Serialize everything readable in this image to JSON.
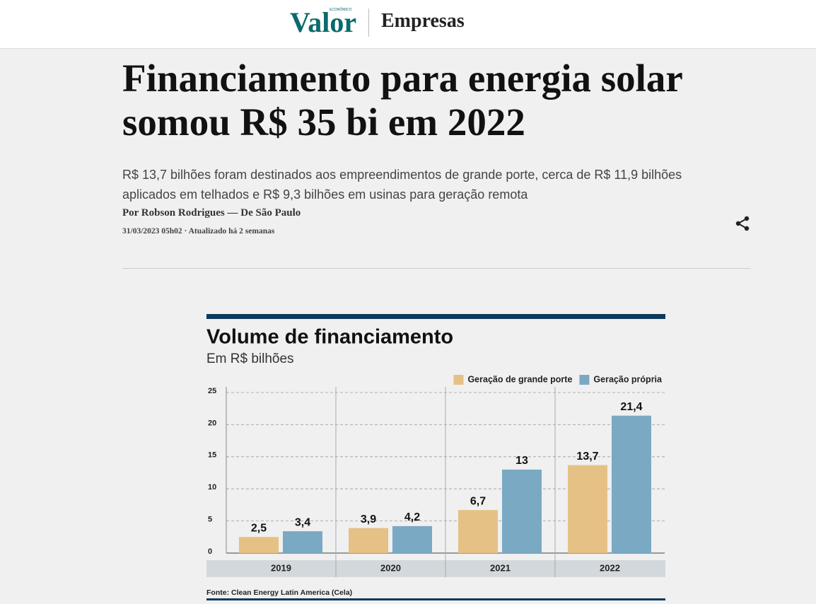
{
  "header": {
    "logo": "Valor",
    "logo_small": "ECONÔMICO",
    "section": "Empresas"
  },
  "article": {
    "title": "Financiamento para energia solar somou R$ 35 bi em 2022",
    "subtitle": "R$ 13,7 bilhões foram destinados aos empreendimentos de grande porte, cerca de R$ 11,9 bilhões aplicados em telhados e R$ 9,3 bilhões em usinas para geração remota",
    "byline": "Por Robson Rodrigues — De São Paulo",
    "date": "31/03/2023 05h02 · Atualizado há 2 semanas"
  },
  "chart_data": {
    "type": "bar",
    "title": "Volume de financiamento",
    "subtitle": "Em R$ bilhões",
    "categories": [
      "2019",
      "2020",
      "2021",
      "2022"
    ],
    "series": [
      {
        "name": "Geração de grande porte",
        "color": "#e5c185",
        "values": [
          2.5,
          3.9,
          6.7,
          13.7
        ],
        "value_labels": [
          "2,5",
          "3,9",
          "6,7",
          "13,7"
        ]
      },
      {
        "name": "Geração própria",
        "color": "#7aa9c4",
        "values": [
          3.4,
          4.2,
          13,
          21.4
        ],
        "value_labels": [
          "3,4",
          "4,2",
          "13",
          "21,4"
        ]
      }
    ],
    "ylim": [
      0,
      25
    ],
    "yticks": [
      0,
      5,
      10,
      15,
      20,
      25
    ],
    "grid": true,
    "legend": "top-right",
    "source": "Fonte: Clean Energy Latin America (Cela)"
  }
}
